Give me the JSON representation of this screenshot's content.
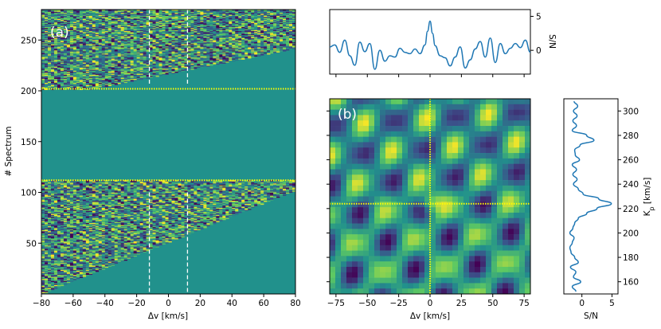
{
  "colors": {
    "viridis_low": "#440154",
    "viridis_mid": "#21918c",
    "viridis_high": "#fde725",
    "background_mask": "#21918c",
    "series_line": "#1f77b4",
    "marker_yellow": "#ffff00",
    "marker_white": "#ffffff"
  },
  "chart_data": [
    {
      "id": "a",
      "type": "heatmap",
      "panel_label": "(a)",
      "xlabel": "Δv [km/s]",
      "ylabel": "# Spectrum",
      "xlim": [
        -80,
        80
      ],
      "ylim": [
        0,
        280
      ],
      "xticks": [
        -80,
        -60,
        -40,
        -20,
        0,
        20,
        40,
        60,
        80
      ],
      "yticks": [
        50,
        100,
        150,
        200,
        250
      ],
      "colormap": "viridis",
      "masked_rows": [
        112,
        202
      ],
      "hlines": [
        {
          "y": 112,
          "color": "yellow",
          "style": "dotted"
        },
        {
          "y": 202,
          "color": "yellow",
          "style": "dotted"
        }
      ],
      "vlines": [
        {
          "x": -12,
          "color": "white",
          "style": "dashed"
        },
        {
          "x": 12,
          "color": "white",
          "style": "dashed"
        }
      ]
    },
    {
      "id": "top",
      "type": "line",
      "ylabel": "S/N",
      "xlim": [
        -80,
        80
      ],
      "ylim": [
        -3.5,
        6
      ],
      "yticks": [
        0,
        5
      ],
      "x": [
        -80,
        -76,
        -72,
        -68,
        -64,
        -60,
        -56,
        -52,
        -48,
        -44,
        -40,
        -36,
        -32,
        -28,
        -24,
        -20,
        -16,
        -12,
        -8,
        -4,
        -2,
        0,
        2,
        4,
        8,
        12,
        16,
        20,
        24,
        28,
        32,
        36,
        40,
        44,
        48,
        52,
        56,
        60,
        64,
        68,
        72,
        76,
        80
      ],
      "values": [
        0.5,
        0.8,
        -0.3,
        1.5,
        -0.8,
        -2.2,
        1.2,
        -0.2,
        1.0,
        -2.8,
        0.0,
        -1.6,
        -0.8,
        -1.0,
        0.3,
        -0.3,
        -0.5,
        0.2,
        -0.5,
        0.8,
        2.8,
        4.3,
        2.5,
        0.7,
        -0.8,
        -1.1,
        -2.3,
        -1.0,
        0.5,
        -2.6,
        -1.4,
        0.2,
        1.3,
        -1.0,
        1.8,
        -1.8,
        1.0,
        -0.5,
        0.3,
        1.0,
        0.4,
        1.5,
        -0.3
      ]
    },
    {
      "id": "b",
      "type": "heatmap",
      "panel_label": "(b)",
      "xlabel": "Δv [km/s]",
      "xlim": [
        -80,
        80
      ],
      "ylim": [
        150,
        310
      ],
      "xticks": [
        -75,
        -50,
        -25,
        0,
        25,
        50,
        75
      ],
      "colormap": "viridis",
      "crosshair": {
        "x": 0,
        "y": 224,
        "color": "yellow",
        "style": "dotted"
      }
    },
    {
      "id": "right",
      "type": "line",
      "xlabel": "S/N",
      "ylabel": "K_p [km/s]",
      "xlim": [
        -3,
        6
      ],
      "ylim": [
        150,
        310
      ],
      "xticks": [
        0,
        5
      ],
      "yticks": [
        160,
        180,
        200,
        220,
        240,
        260,
        280,
        300
      ],
      "y": [
        152,
        156,
        160,
        164,
        168,
        172,
        176,
        180,
        184,
        188,
        192,
        196,
        200,
        204,
        208,
        212,
        216,
        220,
        224,
        228,
        232,
        236,
        240,
        244,
        248,
        252,
        256,
        260,
        264,
        268,
        272,
        276,
        280,
        284,
        288,
        292,
        296,
        300,
        304,
        308
      ],
      "values": [
        -1.0,
        -1.6,
        -0.2,
        -1.4,
        -1.0,
        -1.9,
        -0.6,
        -1.2,
        -1.8,
        -2.0,
        -1.6,
        -1.3,
        -2.0,
        -1.5,
        -1.2,
        -0.6,
        0.8,
        2.5,
        4.9,
        2.8,
        0.2,
        -0.6,
        -1.4,
        -0.8,
        -1.5,
        -0.9,
        -1.6,
        -0.4,
        -1.1,
        -1.2,
        -0.3,
        2.0,
        0.8,
        -1.6,
        -0.9,
        -1.5,
        -0.8,
        -1.4,
        -0.7,
        -1.3
      ]
    }
  ]
}
